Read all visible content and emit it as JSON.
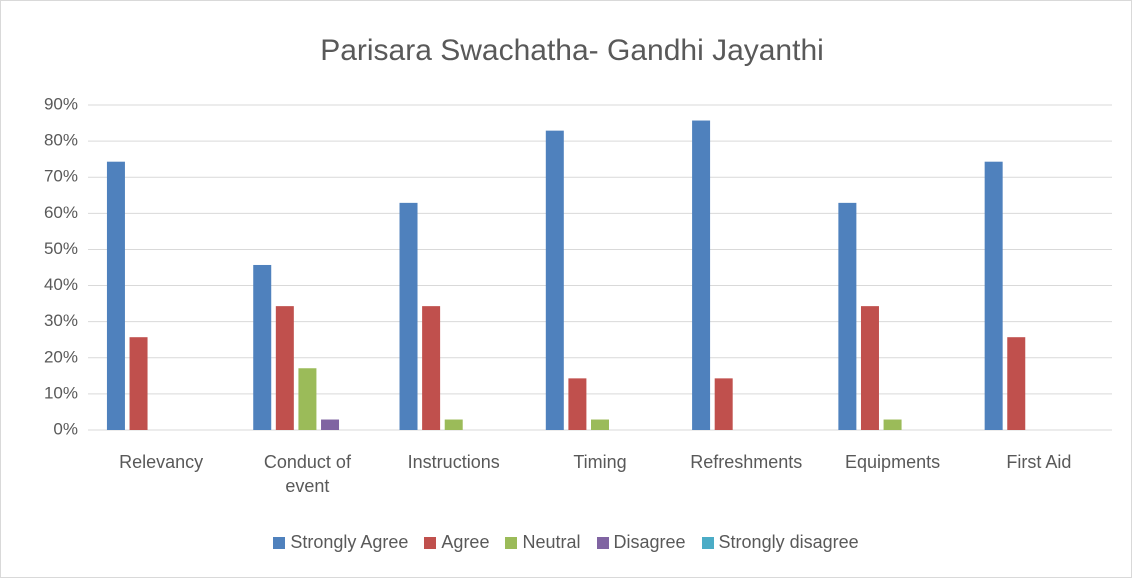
{
  "chart_data": {
    "type": "bar",
    "title": "Parisara Swachatha- Gandhi Jayanthi",
    "categories": [
      "Relevancy",
      "Conduct of event",
      "Instructions",
      "Timing",
      "Refreshments",
      "Equipments",
      "First Aid"
    ],
    "series": [
      {
        "name": "Strongly Agree",
        "color": "#4f81bd",
        "values": [
          74.3,
          45.7,
          62.9,
          82.9,
          85.7,
          62.9,
          74.3
        ]
      },
      {
        "name": "Agree",
        "color": "#c0504d",
        "values": [
          25.7,
          34.3,
          34.3,
          14.3,
          14.3,
          34.3,
          25.7
        ]
      },
      {
        "name": "Neutral",
        "color": "#9bbb59",
        "values": [
          0,
          17.1,
          2.9,
          2.9,
          0,
          2.9,
          0
        ]
      },
      {
        "name": "Disagree",
        "color": "#8064a2",
        "values": [
          0,
          2.9,
          0,
          0,
          0,
          0,
          0
        ]
      },
      {
        "name": "Strongly disagree",
        "color": "#4bacc6",
        "values": [
          0,
          0,
          0,
          0,
          0,
          0,
          0
        ]
      }
    ],
    "ylim": [
      0,
      90
    ],
    "yticks": [
      {
        "value": 0,
        "label": "0%"
      },
      {
        "value": 10,
        "label": "10%"
      },
      {
        "value": 20,
        "label": "20%"
      },
      {
        "value": 30,
        "label": "30%"
      },
      {
        "value": 40,
        "label": "40%"
      },
      {
        "value": 50,
        "label": "50%"
      },
      {
        "value": 60,
        "label": "60%"
      },
      {
        "value": 70,
        "label": "70%"
      },
      {
        "value": 80,
        "label": "80%"
      },
      {
        "value": 90,
        "label": "90%"
      }
    ],
    "grid": true,
    "legend": "bottom"
  }
}
